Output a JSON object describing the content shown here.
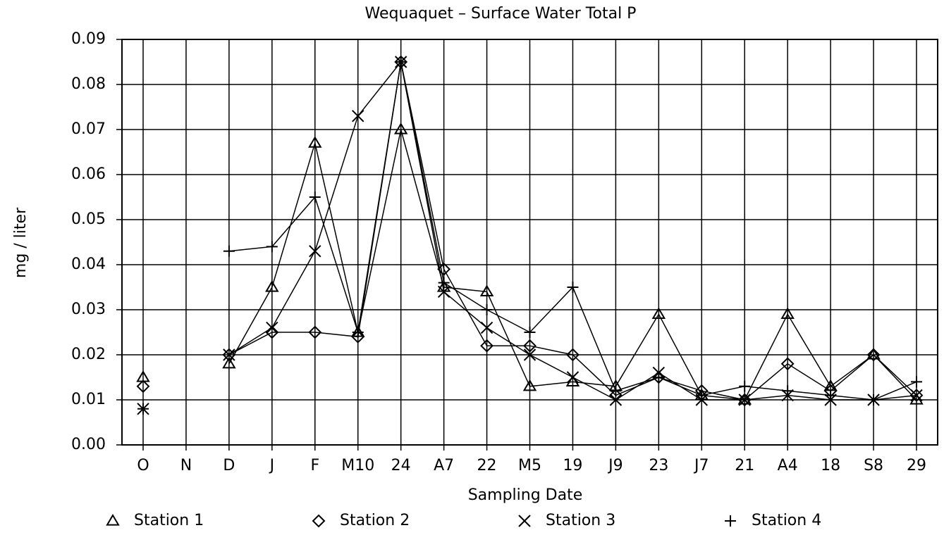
{
  "chart_data": {
    "type": "line",
    "title": "Wequaquet – Surface Water Total P",
    "x_label": "Sampling Date",
    "y_label": "mg / liter",
    "categories": [
      "O",
      "N",
      "D",
      "J",
      "F",
      "M10",
      "24",
      "A7",
      "22",
      "M5",
      "19",
      "J9",
      "23",
      "J7",
      "21",
      "A4",
      "18",
      "S8",
      "29"
    ],
    "series": [
      {
        "name": "Station 1",
        "marker": "triangle",
        "color": "#000000",
        "values": [
          0.015,
          null,
          0.018,
          0.035,
          0.067,
          0.025,
          0.07,
          0.035,
          0.034,
          0.013,
          0.014,
          0.013,
          0.029,
          0.011,
          0.01,
          0.029,
          0.013,
          0.02,
          0.01
        ]
      },
      {
        "name": "Station 2",
        "marker": "diamond",
        "color": "#000000",
        "values": [
          0.013,
          null,
          0.02,
          0.025,
          0.025,
          0.024,
          0.085,
          0.039,
          0.022,
          0.022,
          0.02,
          0.011,
          0.015,
          0.012,
          0.01,
          0.018,
          0.012,
          0.02,
          0.011
        ]
      },
      {
        "name": "Station 3",
        "marker": "x",
        "color": "#000000",
        "values": [
          0.008,
          null,
          0.02,
          0.026,
          0.043,
          0.073,
          0.085,
          0.034,
          0.026,
          0.02,
          0.015,
          0.01,
          0.016,
          0.01,
          0.01,
          0.011,
          0.01,
          0.01,
          0.011
        ]
      },
      {
        "name": "Station 4",
        "marker": "plus",
        "color": "#000000",
        "values": [
          0.008,
          null,
          0.043,
          0.044,
          0.055,
          0.025,
          0.085,
          0.036,
          0.03,
          0.025,
          0.035,
          0.012,
          0.015,
          0.011,
          0.013,
          0.012,
          0.011,
          0.01,
          0.014
        ]
      }
    ],
    "ylim": [
      0,
      0.09
    ],
    "yticks": [
      {
        "value": 0,
        "label": "0.00"
      },
      0.01,
      0.02,
      0.03,
      0.04,
      0.05,
      0.06,
      0.07,
      0.08,
      0.09
    ],
    "grid": true,
    "legend": "bottom"
  }
}
